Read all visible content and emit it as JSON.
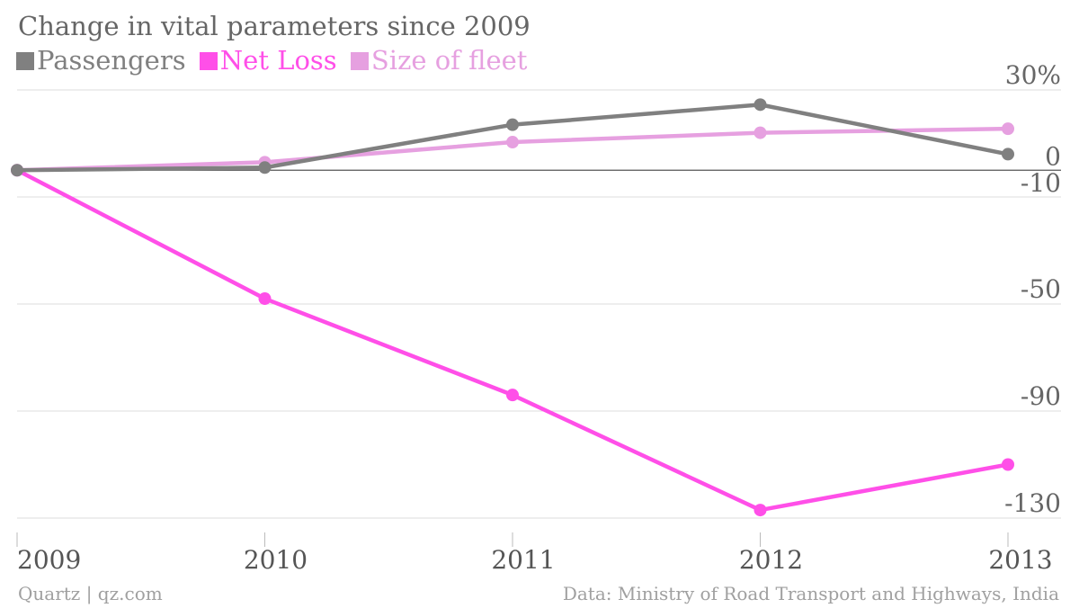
{
  "chart_data": {
    "type": "line",
    "title": "Change in vital parameters since 2009",
    "x": [
      "2009",
      "2010",
      "2011",
      "2012",
      "2013"
    ],
    "y_ticks": [
      30,
      0,
      -10,
      -50,
      -90,
      -130
    ],
    "y_tick_labels": [
      "30%",
      "0",
      "-10",
      "-50",
      "-90",
      "-130"
    ],
    "ylim": [
      -130,
      30
    ],
    "grid": true,
    "legend_position": "top-left",
    "series": [
      {
        "name": "Passengers",
        "color": "#808080",
        "values": [
          0,
          1,
          17,
          24.5,
          6
        ]
      },
      {
        "name": "Net Loss",
        "color": "#ff4fe8",
        "values": [
          0,
          -48,
          -84,
          -127,
          -110
        ]
      },
      {
        "name": "Size of fleet",
        "color": "#e6a0e0",
        "values": [
          0,
          3,
          10.5,
          14,
          15.5
        ]
      }
    ]
  },
  "footer": {
    "credit": "Quartz | qz.com",
    "source": "Data: Ministry of Road Transport and Highways, India"
  }
}
